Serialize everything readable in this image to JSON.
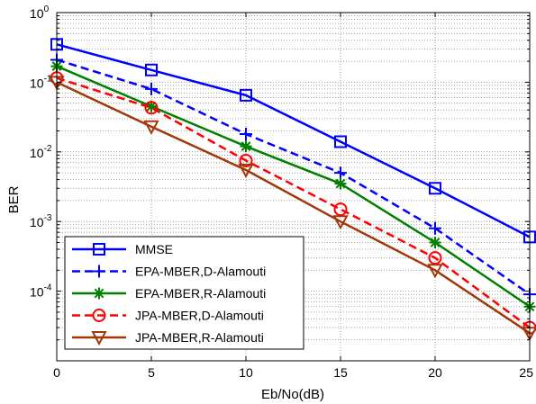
{
  "chart_data": {
    "type": "line",
    "xlabel": "Eb/No(dB)",
    "ylabel": "BER",
    "x": [
      0,
      5,
      10,
      15,
      20,
      25
    ],
    "xlim": [
      0,
      25
    ],
    "ylim": [
      1e-05,
      1
    ],
    "yscale": "log",
    "grid": true,
    "legend_position": "bottom-left",
    "x_tick_labels": [
      "0",
      "5",
      "10",
      "15",
      "20",
      "25"
    ],
    "y_ticks": [
      {
        "value": 1,
        "base": "10",
        "exp": "0"
      },
      {
        "value": 0.1,
        "base": "10",
        "exp": "-1"
      },
      {
        "value": 0.01,
        "base": "10",
        "exp": "-2"
      },
      {
        "value": 0.001,
        "base": "10",
        "exp": "-3"
      },
      {
        "value": 0.0001,
        "base": "10",
        "exp": "-4"
      }
    ],
    "series": [
      {
        "name": "MMSE",
        "values": [
          0.35,
          0.15,
          0.065,
          0.014,
          0.003,
          0.0006
        ],
        "color": "#0000ff",
        "dash": "solid",
        "marker": "square"
      },
      {
        "name": "EPA-MBER,D-Alamouti",
        "values": [
          0.21,
          0.08,
          0.018,
          0.005,
          0.0008,
          9e-05
        ],
        "color": "#0000ff",
        "dash": "dashed",
        "marker": "plus"
      },
      {
        "name": "EPA-MBER,R-Alamouti",
        "values": [
          0.17,
          0.045,
          0.012,
          0.0035,
          0.0005,
          6e-05
        ],
        "color": "#008000",
        "dash": "solid",
        "marker": "star"
      },
      {
        "name": "JPA-MBER,D-Alamouti",
        "values": [
          0.115,
          0.043,
          0.0075,
          0.0015,
          0.0003,
          3e-05
        ],
        "color": "#ff0000",
        "dash": "dashed",
        "marker": "circle"
      },
      {
        "name": "JPA-MBER,R-Alamouti",
        "values": [
          0.1,
          0.023,
          0.0055,
          0.001,
          0.0002,
          2.5e-05
        ],
        "color": "#a0390a",
        "dash": "solid",
        "marker": "triangle-down"
      }
    ]
  }
}
